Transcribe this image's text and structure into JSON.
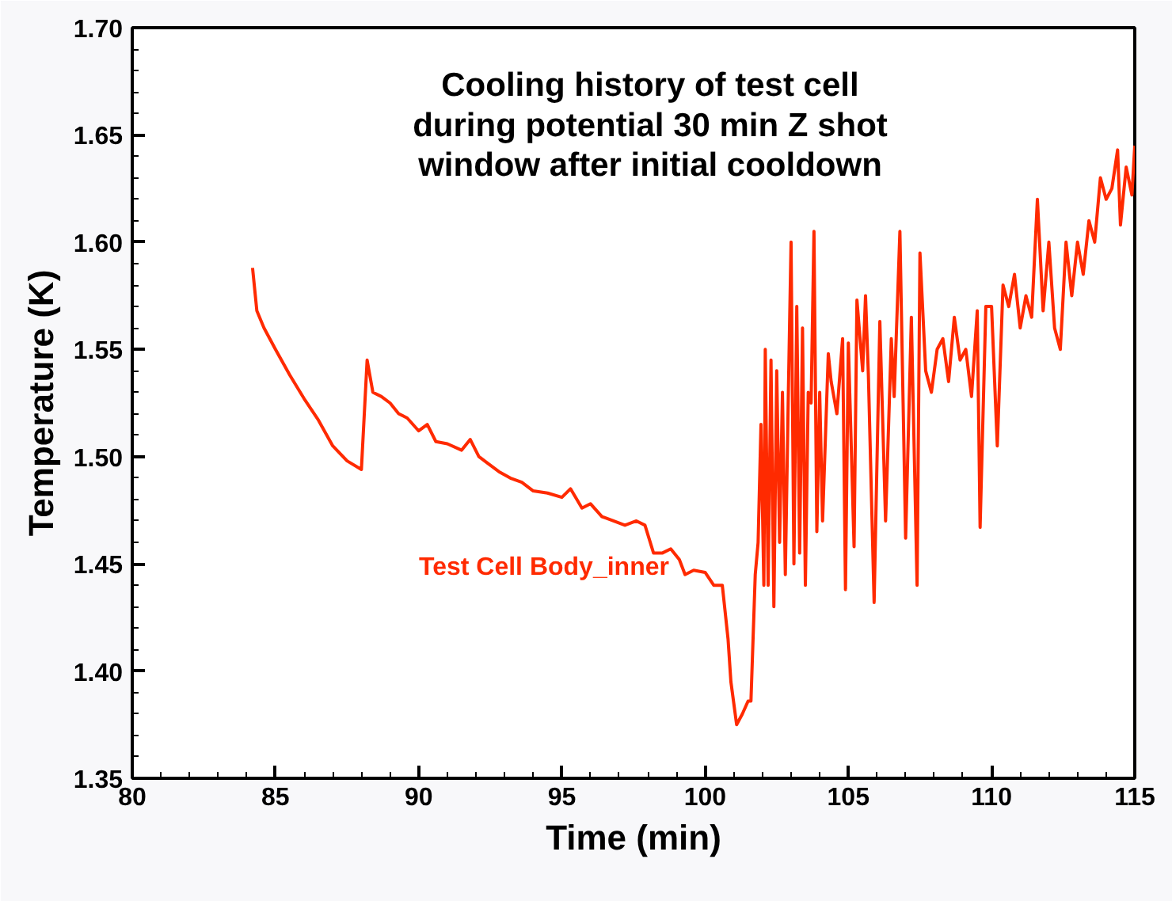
{
  "chart_data": {
    "type": "line",
    "title": "Cooling history of test cell\nduring potential 30 min Z shot\nwindow after initial cooldown",
    "xlabel": "Time (min)",
    "ylabel": "Temperature (K)",
    "xlim": [
      80,
      115
    ],
    "xticks": [
      80,
      85,
      90,
      95,
      100,
      105,
      110,
      115
    ],
    "ylim": [
      1.35,
      1.7
    ],
    "yticks": [
      {
        "value": 1.35,
        "label": "1.35"
      },
      {
        "value": 1.4,
        "label": "1.40"
      },
      {
        "value": 1.45,
        "label": "1.45"
      },
      {
        "value": 1.5,
        "label": "1.50"
      },
      {
        "value": 1.55,
        "label": "1.55"
      },
      {
        "value": 1.6,
        "label": "1.60"
      },
      {
        "value": 1.65,
        "label": "1.65"
      },
      {
        "value": 1.7,
        "label": "1.70"
      }
    ],
    "grid": false,
    "legend": false,
    "marker": "none",
    "line_style": "solid",
    "series": [
      {
        "name": "Test Cell Body_inner",
        "color": "#ff2a00",
        "x": [
          84.2,
          84.35,
          84.6,
          85,
          85.5,
          86,
          86.5,
          87,
          87.5,
          88.0,
          88.2,
          88.4,
          88.7,
          89,
          89.3,
          89.6,
          90,
          90.3,
          90.6,
          91,
          91.5,
          91.8,
          92.1,
          92.4,
          92.8,
          93.2,
          93.6,
          94,
          94.5,
          95,
          95.3,
          95.7,
          96,
          96.4,
          96.8,
          97.2,
          97.6,
          97.9,
          98.2,
          98.5,
          98.8,
          99.1,
          99.3,
          99.6,
          100,
          100.3,
          100.6,
          100.8,
          100.9,
          101.1,
          101.3,
          101.5,
          101.6,
          101.75,
          101.85,
          101.95,
          102.05,
          102.1,
          102.2,
          102.3,
          102.4,
          102.5,
          102.6,
          102.7,
          102.8,
          102.9,
          103.0,
          103.1,
          103.2,
          103.3,
          103.4,
          103.5,
          103.6,
          103.7,
          103.8,
          103.9,
          104.0,
          104.1,
          104.3,
          104.4,
          104.6,
          104.8,
          104.9,
          105.0,
          105.2,
          105.3,
          105.5,
          105.6,
          105.7,
          105.9,
          106.1,
          106.3,
          106.5,
          106.6,
          106.8,
          107.0,
          107.2,
          107.4,
          107.5,
          107.7,
          107.9,
          108.1,
          108.3,
          108.5,
          108.7,
          108.9,
          109.1,
          109.3,
          109.5,
          109.6,
          109.8,
          110.0,
          110.2,
          110.4,
          110.6,
          110.8,
          111.0,
          111.2,
          111.4,
          111.6,
          111.8,
          112.0,
          112.2,
          112.4,
          112.6,
          112.8,
          113.0,
          113.2,
          113.4,
          113.6,
          113.8,
          114.0,
          114.2,
          114.4,
          114.5,
          114.7,
          114.9,
          115.0
        ],
        "values": [
          1.588,
          1.568,
          1.56,
          1.55,
          1.538,
          1.527,
          1.517,
          1.505,
          1.498,
          1.494,
          1.545,
          1.53,
          1.528,
          1.525,
          1.52,
          1.518,
          1.512,
          1.515,
          1.507,
          1.506,
          1.503,
          1.508,
          1.5,
          1.497,
          1.493,
          1.49,
          1.488,
          1.484,
          1.483,
          1.481,
          1.485,
          1.476,
          1.478,
          1.472,
          1.47,
          1.468,
          1.47,
          1.468,
          1.455,
          1.455,
          1.457,
          1.452,
          1.445,
          1.447,
          1.446,
          1.44,
          1.44,
          1.415,
          1.395,
          1.375,
          1.38,
          1.386,
          1.386,
          1.445,
          1.46,
          1.515,
          1.44,
          1.55,
          1.44,
          1.545,
          1.43,
          1.54,
          1.46,
          1.53,
          1.445,
          1.525,
          1.6,
          1.45,
          1.57,
          1.455,
          1.56,
          1.44,
          1.53,
          1.525,
          1.605,
          1.465,
          1.53,
          1.47,
          1.548,
          1.535,
          1.52,
          1.555,
          1.438,
          1.553,
          1.458,
          1.573,
          1.54,
          1.575,
          1.538,
          1.432,
          1.563,
          1.47,
          1.555,
          1.528,
          1.605,
          1.462,
          1.565,
          1.44,
          1.595,
          1.54,
          1.53,
          1.55,
          1.555,
          1.535,
          1.565,
          1.545,
          1.55,
          1.528,
          1.568,
          1.467,
          1.57,
          1.57,
          1.505,
          1.58,
          1.57,
          1.585,
          1.56,
          1.575,
          1.565,
          1.62,
          1.568,
          1.6,
          1.56,
          1.55,
          1.6,
          1.575,
          1.6,
          1.585,
          1.61,
          1.6,
          1.63,
          1.62,
          1.625,
          1.643,
          1.608,
          1.635,
          1.622,
          1.645
        ]
      }
    ]
  }
}
